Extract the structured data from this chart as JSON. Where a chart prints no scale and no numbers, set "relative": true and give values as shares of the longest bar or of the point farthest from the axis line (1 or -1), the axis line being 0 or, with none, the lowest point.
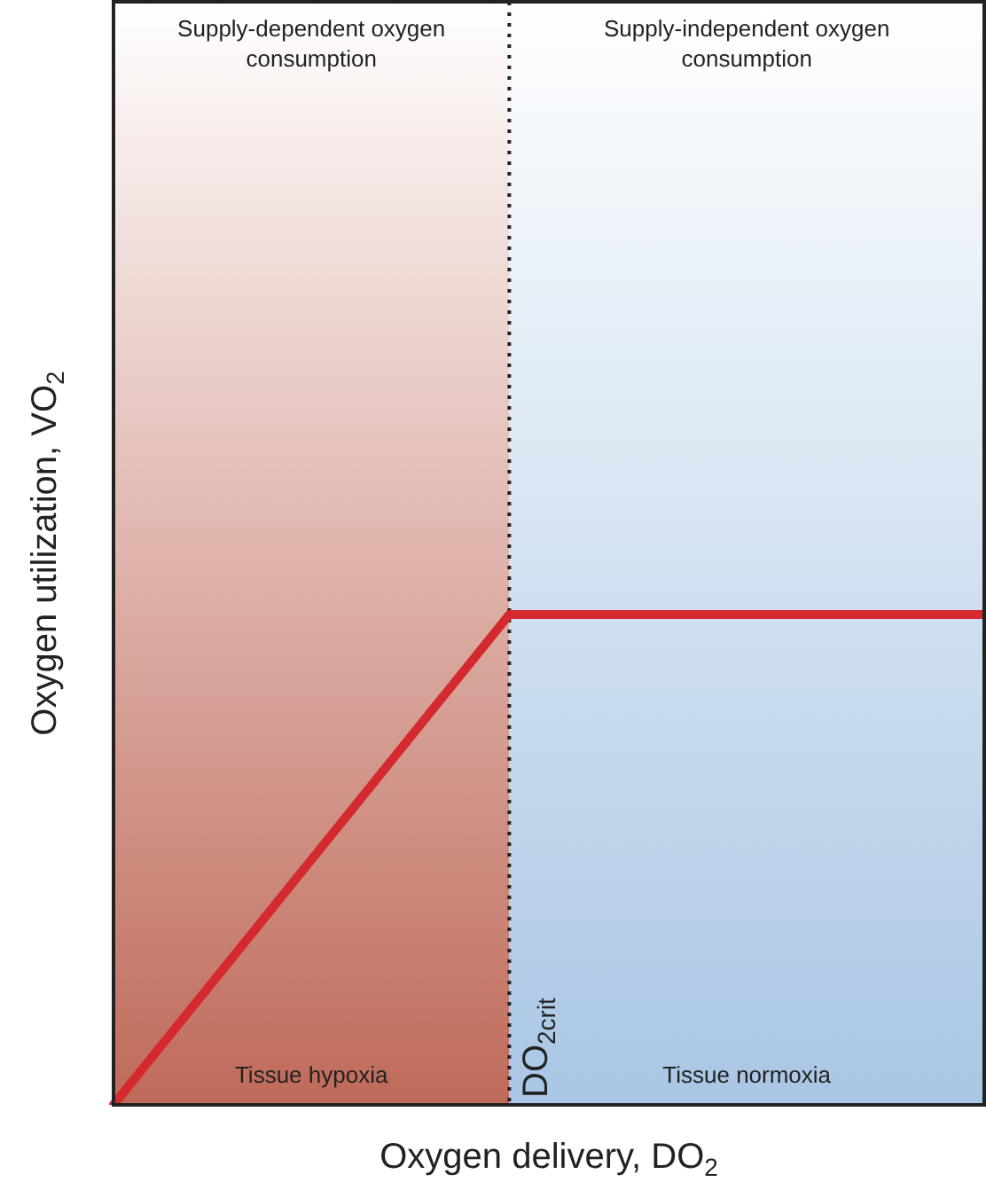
{
  "chart_data": {
    "type": "line",
    "relative": true,
    "xlabel": "Oxygen delivery, DO$_{2}$",
    "ylabel": "Oxygen utilization, VO$_{2}$",
    "categories": [
      null,
      null,
      null,
      null,
      null,
      null,
      null,
      null,
      null,
      null,
      null,
      null
    ],
    "tick_labels": false,
    "grid": false,
    "legend": false,
    "marker": "none",
    "line_style": "solid",
    "series": [
      {
        "color": "#d42a2e",
        "values": [
          0,
          0.2,
          0.4,
          0.6,
          0.8,
          1,
          1,
          1,
          1,
          1,
          1,
          1
        ]
      }
    ],
    "ref_lines": [
      {
        "axis": "x",
        "label": "DO$_{2crit}$",
        "line_style": "dotted",
        "color": "#222222"
      }
    ],
    "annotations": [
      "Supply-dependent oxygen consumption",
      "Supply-independent oxygen consumption",
      "Tissue hypoxia",
      "Tissue normoxia"
    ]
  }
}
